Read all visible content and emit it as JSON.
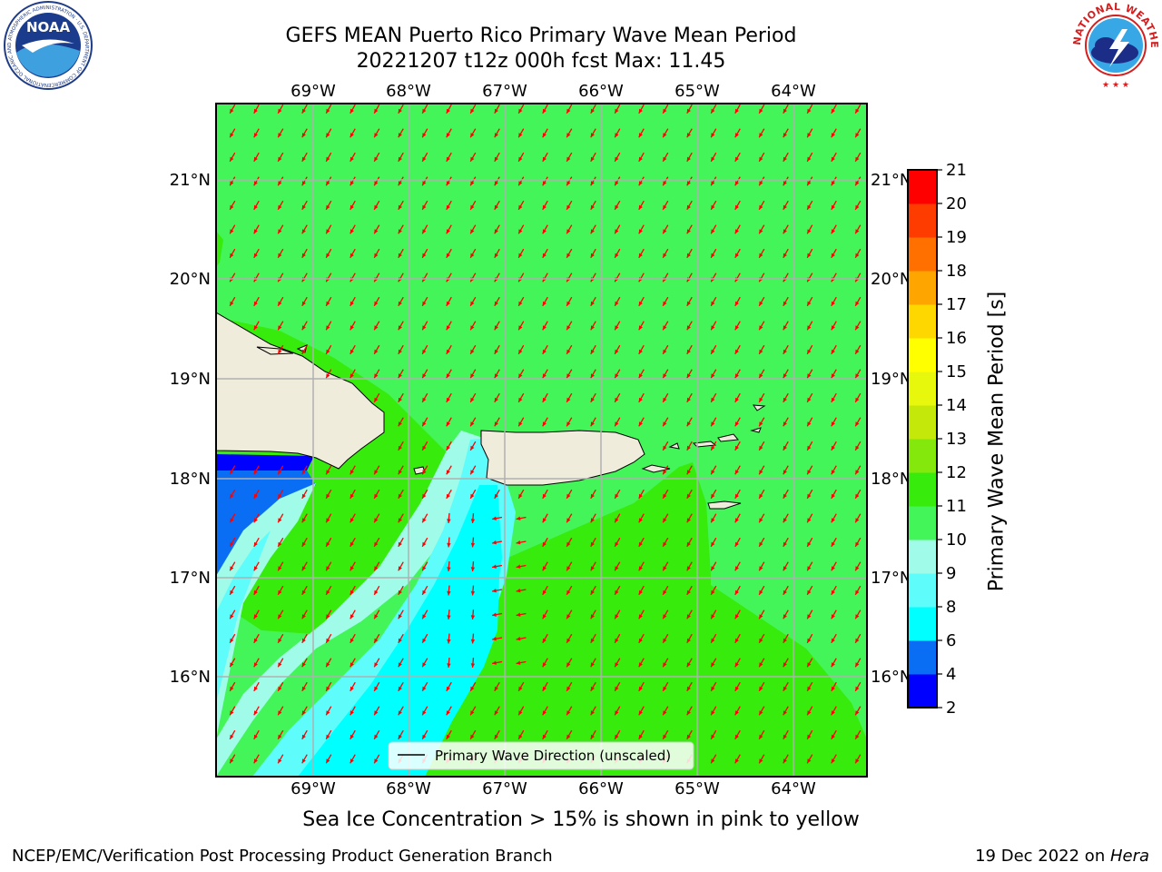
{
  "title": {
    "line1": "GEFS MEAN Puerto Rico Primary Wave Mean Period",
    "line2": "20221207 t12z 000h fcst   Max: 11.45"
  },
  "map": {
    "lon_labels": [
      "69°W",
      "68°W",
      "67°W",
      "66°W",
      "65°W",
      "64°W"
    ],
    "lat_labels": [
      "21°N",
      "20°N",
      "19°N",
      "18°N",
      "17°N",
      "16°N"
    ],
    "legend_label": "Primary Wave Direction (unscaled)",
    "colors": {
      "land": "#efecdc",
      "arrow": "#ff0000",
      "gridline": "#b0b0b0"
    }
  },
  "colorbar": {
    "label": "Primary Wave Mean Period [s]",
    "ticks": [
      "2",
      "4",
      "6",
      "8",
      "9",
      "10",
      "11",
      "12",
      "13",
      "14",
      "15",
      "16",
      "17",
      "18",
      "19",
      "20",
      "21"
    ],
    "colors": [
      "#0000ff",
      "#0a6ef5",
      "#00ffff",
      "#5ffcfc",
      "#a0fce8",
      "#44f55a",
      "#37eb0c",
      "#85e80c",
      "#c4e80a",
      "#e8f80c",
      "#ffff00",
      "#ffd700",
      "#ffa500",
      "#ff7000",
      "#ff3c00",
      "#ff0000"
    ]
  },
  "subtitle": "Sea Ice Concentration > 15% is shown in pink to yellow",
  "footer": {
    "left": "NCEP/EMC/Verification Post Processing Product Generation Branch",
    "date": "19 Dec 2022 on ",
    "host": "Hera"
  },
  "logos": {
    "noaa_text": "NOAA",
    "nws_text": "NATIONAL WEATHER SERVICE"
  }
}
